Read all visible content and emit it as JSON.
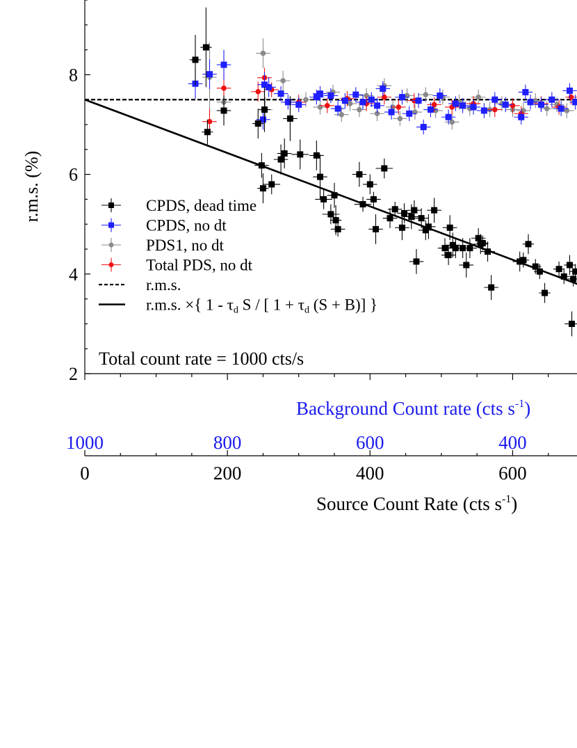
{
  "chart_data": {
    "type": "scatter",
    "ylabel": "r.m.s. (%)",
    "xlabel": "Source Count Rate (cts s",
    "xlabel_sup": "-1",
    "xlabel_tail": ")",
    "x2label": "Background Count rate (cts s",
    "x2label_sup": "-1",
    "x2label_tail": ")",
    "annotation": "Total count rate = 1000 cts/s",
    "xlim": [
      0,
      700
    ],
    "ylim": [
      2,
      10
    ],
    "xticks": [
      0,
      200,
      400,
      600
    ],
    "yticks": [
      2,
      4,
      6,
      8
    ],
    "x2ticks": [
      {
        "value": 1000,
        "label": "1000"
      },
      {
        "value": 800,
        "label": "800"
      },
      {
        "value": 600,
        "label": "600"
      },
      {
        "value": 400,
        "label": "400"
      }
    ],
    "colors": {
      "cpds_dead": "#000000",
      "cpds_nodt": "#1f1fff",
      "pds1_nodt": "#8a8a8a",
      "total_nodt": "#ee1111",
      "x2axis": "#1a1aee"
    },
    "reference_lines": [
      {
        "name": "r.m.s.",
        "style": "dashed",
        "y_value": 7.5
      },
      {
        "name": "r.m.s. ×{ 1 - τd S / [ 1 + τd (S + B)] }",
        "style": "solid",
        "x": [
          0,
          700
        ],
        "y": [
          7.5,
          3.75
        ]
      }
    ],
    "legend_entries": [
      {
        "label": "CPDS, dead time",
        "kind": "marker",
        "marker": "square",
        "color_key": "cpds_dead"
      },
      {
        "label": "CPDS, no dt",
        "kind": "marker",
        "marker": "square",
        "color_key": "cpds_nodt"
      },
      {
        "label": "PDS1, no dt",
        "kind": "marker",
        "marker": "circle",
        "color_key": "pds1_nodt"
      },
      {
        "label": "Total PDS, no dt",
        "kind": "marker",
        "marker": "circle",
        "color_key": "total_nodt"
      },
      {
        "label": "r.m.s.",
        "kind": "line",
        "style": "dashed"
      },
      {
        "label": "r.m.s. ×{ 1 - τ",
        "sub": "d",
        "mid": " S / [ 1 + τ",
        "sub2": "d",
        "tail": " (S + B)] }",
        "kind": "line",
        "style": "solid"
      }
    ],
    "series": [
      {
        "name": "CPDS, dead time",
        "color_key": "cpds_dead",
        "marker": "square",
        "points": [
          [
            155,
            8.3,
            1.0,
            8
          ],
          [
            170,
            8.55,
            1.6,
            8
          ],
          [
            172,
            6.85,
            0.5,
            8
          ],
          [
            195,
            7.28,
            0.6,
            10
          ],
          [
            243,
            7.02,
            0.6,
            8
          ],
          [
            248,
            6.18,
            0.5,
            10
          ],
          [
            250,
            5.72,
            0.6,
            8
          ],
          [
            252,
            7.3,
            0.9,
            8
          ],
          [
            262,
            5.8,
            0.4,
            12
          ],
          [
            275,
            6.3,
            0.6,
            10
          ],
          [
            280,
            6.42,
            0.6,
            10
          ],
          [
            288,
            7.12,
            0.9,
            10
          ],
          [
            302,
            6.4,
            0.6,
            12
          ],
          [
            325,
            6.38,
            0.6,
            10
          ],
          [
            330,
            5.95,
            0.9,
            10
          ],
          [
            335,
            5.5,
            0.4,
            12
          ],
          [
            345,
            5.2,
            0.4,
            12
          ],
          [
            350,
            5.58,
            0.5,
            10
          ],
          [
            352,
            5.08,
            0.6,
            8
          ],
          [
            355,
            4.9,
            0.3,
            10
          ],
          [
            385,
            6.0,
            0.5,
            10
          ],
          [
            390,
            5.4,
            0.3,
            12
          ],
          [
            400,
            5.8,
            0.4,
            10
          ],
          [
            405,
            5.5,
            0.3,
            10
          ],
          [
            408,
            4.9,
            0.6,
            10
          ],
          [
            420,
            6.12,
            0.4,
            12
          ],
          [
            428,
            5.12,
            0.4,
            10
          ],
          [
            435,
            5.3,
            0.3,
            10
          ],
          [
            445,
            4.93,
            0.5,
            10
          ],
          [
            448,
            5.22,
            0.4,
            10
          ],
          [
            458,
            5.15,
            0.5,
            12
          ],
          [
            462,
            5.28,
            0.4,
            10
          ],
          [
            465,
            4.25,
            0.5,
            10
          ],
          [
            472,
            5.12,
            0.4,
            10
          ],
          [
            478,
            4.88,
            0.4,
            10
          ],
          [
            482,
            4.95,
            0.5,
            10
          ],
          [
            490,
            5.28,
            0.5,
            10
          ],
          [
            505,
            4.52,
            0.4,
            10
          ],
          [
            510,
            4.38,
            0.4,
            10
          ],
          [
            512,
            4.93,
            0.5,
            10
          ],
          [
            516,
            4.58,
            0.5,
            10
          ],
          [
            520,
            4.52,
            0.4,
            10
          ],
          [
            530,
            4.52,
            0.4,
            10
          ],
          [
            535,
            4.18,
            0.5,
            10
          ],
          [
            540,
            4.52,
            0.4,
            10
          ],
          [
            552,
            4.72,
            0.4,
            10
          ],
          [
            555,
            4.6,
            0.4,
            10
          ],
          [
            558,
            4.62,
            0.3,
            8
          ],
          [
            565,
            4.45,
            0.4,
            10
          ],
          [
            570,
            3.73,
            0.5,
            10
          ],
          [
            610,
            4.25,
            0.4,
            10
          ],
          [
            615,
            4.28,
            0.3,
            8
          ],
          [
            622,
            4.6,
            0.4,
            8
          ],
          [
            632,
            4.15,
            0.3,
            8
          ],
          [
            638,
            4.05,
            0.3,
            8
          ],
          [
            645,
            3.62,
            0.4,
            8
          ],
          [
            665,
            4.1,
            0.3,
            8
          ],
          [
            672,
            3.95,
            0.3,
            8
          ],
          [
            680,
            4.18,
            0.4,
            8
          ],
          [
            685,
            3.9,
            0.3,
            8
          ],
          [
            688,
            4.05,
            0.3,
            8
          ],
          [
            683,
            3.0,
            0.5,
            10
          ]
        ]
      },
      {
        "name": "CPDS, no dt",
        "color_key": "cpds_nodt",
        "marker": "square",
        "points": [
          [
            155,
            7.82,
            0.6,
            10
          ],
          [
            175,
            8.01,
            0.6,
            10
          ],
          [
            195,
            8.2,
            0.6,
            10
          ],
          [
            250,
            7.1,
            0.4,
            10
          ],
          [
            252,
            7.8,
            0.5,
            10
          ],
          [
            258,
            7.75,
            0.4,
            10
          ],
          [
            275,
            7.62,
            0.3,
            10
          ],
          [
            285,
            7.45,
            0.3,
            10
          ],
          [
            300,
            7.4,
            0.3,
            10
          ],
          [
            325,
            7.55,
            0.3,
            10
          ],
          [
            330,
            7.62,
            0.3,
            10
          ],
          [
            345,
            7.58,
            0.3,
            10
          ],
          [
            355,
            7.32,
            0.3,
            10
          ],
          [
            365,
            7.48,
            0.3,
            10
          ],
          [
            380,
            7.6,
            0.3,
            10
          ],
          [
            390,
            7.45,
            0.3,
            10
          ],
          [
            402,
            7.5,
            0.3,
            10
          ],
          [
            410,
            7.38,
            0.3,
            10
          ],
          [
            418,
            7.72,
            0.3,
            10
          ],
          [
            430,
            7.25,
            0.3,
            10
          ],
          [
            445,
            7.55,
            0.3,
            10
          ],
          [
            455,
            7.22,
            0.3,
            10
          ],
          [
            468,
            7.48,
            0.3,
            10
          ],
          [
            475,
            6.95,
            0.3,
            10
          ],
          [
            485,
            7.3,
            0.3,
            10
          ],
          [
            498,
            7.58,
            0.3,
            10
          ],
          [
            510,
            7.15,
            0.3,
            10
          ],
          [
            520,
            7.42,
            0.3,
            10
          ],
          [
            530,
            7.38,
            0.3,
            10
          ],
          [
            545,
            7.35,
            0.3,
            10
          ],
          [
            560,
            7.28,
            0.3,
            10
          ],
          [
            575,
            7.5,
            0.3,
            10
          ],
          [
            590,
            7.4,
            0.3,
            10
          ],
          [
            612,
            7.15,
            0.3,
            10
          ],
          [
            618,
            7.65,
            0.3,
            10
          ],
          [
            625,
            7.45,
            0.3,
            10
          ],
          [
            640,
            7.4,
            0.3,
            10
          ],
          [
            655,
            7.5,
            0.3,
            10
          ],
          [
            668,
            7.32,
            0.3,
            10
          ],
          [
            680,
            7.68,
            0.3,
            10
          ],
          [
            688,
            7.45,
            0.3,
            8
          ]
        ]
      },
      {
        "name": "PDS1, no dt",
        "color_key": "pds1_nodt",
        "marker": "circle",
        "points": [
          [
            175,
            7.95,
            1.4,
            10
          ],
          [
            195,
            7.45,
            0.6,
            10
          ],
          [
            250,
            8.43,
            0.6,
            10
          ],
          [
            253,
            7.3,
            0.5,
            10
          ],
          [
            278,
            7.88,
            0.4,
            10
          ],
          [
            310,
            7.5,
            0.3,
            10
          ],
          [
            330,
            7.35,
            0.3,
            10
          ],
          [
            348,
            7.65,
            0.3,
            10
          ],
          [
            360,
            7.2,
            0.3,
            10
          ],
          [
            372,
            7.42,
            0.3,
            10
          ],
          [
            385,
            7.3,
            0.3,
            10
          ],
          [
            395,
            7.58,
            0.3,
            10
          ],
          [
            410,
            7.22,
            0.3,
            10
          ],
          [
            420,
            7.78,
            0.3,
            10
          ],
          [
            432,
            7.35,
            0.3,
            10
          ],
          [
            442,
            7.12,
            0.3,
            10
          ],
          [
            452,
            7.58,
            0.3,
            10
          ],
          [
            463,
            7.25,
            0.3,
            10
          ],
          [
            478,
            7.6,
            0.3,
            10
          ],
          [
            492,
            7.28,
            0.3,
            10
          ],
          [
            502,
            7.55,
            0.3,
            10
          ],
          [
            515,
            7.05,
            0.3,
            10
          ],
          [
            525,
            7.45,
            0.3,
            10
          ],
          [
            540,
            7.32,
            0.3,
            10
          ],
          [
            552,
            7.55,
            0.3,
            10
          ],
          [
            568,
            7.3,
            0.3,
            10
          ],
          [
            585,
            7.42,
            0.3,
            10
          ],
          [
            600,
            7.3,
            0.3,
            10
          ],
          [
            615,
            7.28,
            0.3,
            10
          ],
          [
            632,
            7.48,
            0.3,
            10
          ],
          [
            648,
            7.32,
            0.3,
            10
          ],
          [
            662,
            7.4,
            0.3,
            10
          ],
          [
            676,
            7.28,
            0.3,
            10
          ]
        ]
      },
      {
        "name": "Total PDS, no dt",
        "color_key": "total_nodt",
        "marker": "circle",
        "points": [
          [
            175,
            7.06,
            0.5,
            10
          ],
          [
            195,
            7.73,
            0.6,
            10
          ],
          [
            243,
            7.66,
            0.4,
            10
          ],
          [
            252,
            7.94,
            0.4,
            10
          ],
          [
            262,
            7.7,
            0.3,
            10
          ],
          [
            300,
            7.45,
            0.3,
            10
          ],
          [
            340,
            7.38,
            0.3,
            10
          ],
          [
            368,
            7.52,
            0.3,
            10
          ],
          [
            395,
            7.42,
            0.3,
            10
          ],
          [
            420,
            7.55,
            0.3,
            10
          ],
          [
            440,
            7.35,
            0.3,
            10
          ],
          [
            462,
            7.48,
            0.3,
            10
          ],
          [
            490,
            7.4,
            0.3,
            10
          ],
          [
            515,
            7.35,
            0.3,
            10
          ],
          [
            545,
            7.42,
            0.3,
            10
          ],
          [
            575,
            7.3,
            0.3,
            10
          ],
          [
            600,
            7.38,
            0.3,
            10
          ],
          [
            612,
            7.22,
            0.3,
            10
          ],
          [
            640,
            7.42,
            0.3,
            10
          ],
          [
            665,
            7.35,
            0.3,
            10
          ],
          [
            682,
            7.55,
            0.3,
            8
          ]
        ]
      }
    ]
  }
}
